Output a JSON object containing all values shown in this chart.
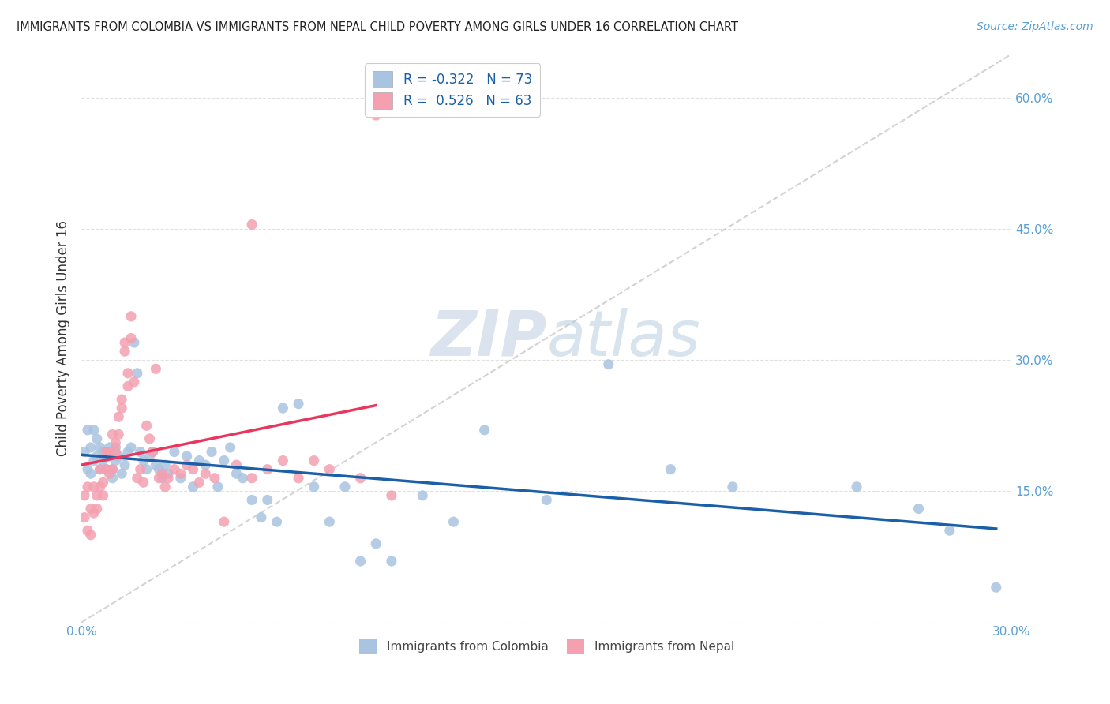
{
  "title": "IMMIGRANTS FROM COLOMBIA VS IMMIGRANTS FROM NEPAL CHILD POVERTY AMONG GIRLS UNDER 16 CORRELATION CHART",
  "source": "Source: ZipAtlas.com",
  "ylabel": "Child Poverty Among Girls Under 16",
  "xlim": [
    0.0,
    0.3
  ],
  "ylim": [
    0.0,
    0.65
  ],
  "xticks": [
    0.0,
    0.05,
    0.1,
    0.15,
    0.2,
    0.25,
    0.3
  ],
  "yticks": [
    0.0,
    0.15,
    0.3,
    0.45,
    0.6
  ],
  "ytick_labels": [
    "",
    "15.0%",
    "30.0%",
    "45.0%",
    "60.0%"
  ],
  "xtick_labels": [
    "0.0%",
    "",
    "",
    "",
    "",
    "",
    "30.0%"
  ],
  "colombia_R": -0.322,
  "colombia_N": 73,
  "nepal_R": 0.526,
  "nepal_N": 63,
  "colombia_color": "#a8c4e0",
  "nepal_color": "#f4a0b0",
  "colombia_line_color": "#1a5fa8",
  "nepal_line_color": "#e8365d",
  "background_color": "#ffffff",
  "colombia_x": [
    0.001,
    0.002,
    0.002,
    0.003,
    0.003,
    0.004,
    0.004,
    0.005,
    0.005,
    0.006,
    0.006,
    0.007,
    0.007,
    0.008,
    0.008,
    0.009,
    0.009,
    0.01,
    0.01,
    0.011,
    0.011,
    0.012,
    0.013,
    0.014,
    0.015,
    0.016,
    0.017,
    0.018,
    0.019,
    0.02,
    0.021,
    0.022,
    0.023,
    0.024,
    0.025,
    0.026,
    0.027,
    0.028,
    0.03,
    0.032,
    0.034,
    0.036,
    0.038,
    0.04,
    0.042,
    0.044,
    0.046,
    0.048,
    0.05,
    0.052,
    0.055,
    0.058,
    0.06,
    0.063,
    0.065,
    0.07,
    0.075,
    0.08,
    0.085,
    0.09,
    0.095,
    0.1,
    0.11,
    0.12,
    0.13,
    0.15,
    0.17,
    0.19,
    0.21,
    0.25,
    0.27,
    0.28,
    0.295
  ],
  "colombia_y": [
    0.195,
    0.22,
    0.175,
    0.2,
    0.17,
    0.22,
    0.185,
    0.19,
    0.21,
    0.175,
    0.2,
    0.185,
    0.195,
    0.175,
    0.19,
    0.19,
    0.2,
    0.175,
    0.165,
    0.185,
    0.2,
    0.19,
    0.17,
    0.18,
    0.195,
    0.2,
    0.32,
    0.285,
    0.195,
    0.185,
    0.175,
    0.19,
    0.195,
    0.18,
    0.175,
    0.165,
    0.18,
    0.17,
    0.195,
    0.165,
    0.19,
    0.155,
    0.185,
    0.18,
    0.195,
    0.155,
    0.185,
    0.2,
    0.17,
    0.165,
    0.14,
    0.12,
    0.14,
    0.115,
    0.245,
    0.25,
    0.155,
    0.115,
    0.155,
    0.07,
    0.09,
    0.07,
    0.145,
    0.115,
    0.22,
    0.14,
    0.295,
    0.175,
    0.155,
    0.155,
    0.13,
    0.105,
    0.04
  ],
  "nepal_x": [
    0.001,
    0.001,
    0.002,
    0.002,
    0.003,
    0.003,
    0.004,
    0.004,
    0.005,
    0.005,
    0.006,
    0.006,
    0.007,
    0.007,
    0.008,
    0.008,
    0.009,
    0.009,
    0.01,
    0.01,
    0.011,
    0.011,
    0.012,
    0.012,
    0.013,
    0.013,
    0.014,
    0.014,
    0.015,
    0.015,
    0.016,
    0.016,
    0.017,
    0.018,
    0.019,
    0.02,
    0.021,
    0.022,
    0.023,
    0.024,
    0.025,
    0.026,
    0.027,
    0.028,
    0.03,
    0.032,
    0.034,
    0.036,
    0.038,
    0.04,
    0.043,
    0.046,
    0.05,
    0.055,
    0.06,
    0.065,
    0.07,
    0.075,
    0.08,
    0.09,
    0.1,
    0.055,
    0.095
  ],
  "nepal_y": [
    0.145,
    0.12,
    0.155,
    0.105,
    0.13,
    0.1,
    0.155,
    0.125,
    0.145,
    0.13,
    0.155,
    0.175,
    0.145,
    0.16,
    0.195,
    0.175,
    0.195,
    0.17,
    0.175,
    0.215,
    0.195,
    0.205,
    0.215,
    0.235,
    0.255,
    0.245,
    0.31,
    0.32,
    0.27,
    0.285,
    0.325,
    0.35,
    0.275,
    0.165,
    0.175,
    0.16,
    0.225,
    0.21,
    0.195,
    0.29,
    0.165,
    0.17,
    0.155,
    0.165,
    0.175,
    0.17,
    0.18,
    0.175,
    0.16,
    0.17,
    0.165,
    0.115,
    0.18,
    0.165,
    0.175,
    0.185,
    0.165,
    0.185,
    0.175,
    0.165,
    0.145,
    0.455,
    0.58
  ],
  "nepal_trend_x": [
    0.0,
    0.095
  ],
  "colombia_trend_x": [
    0.0,
    0.295
  ],
  "ref_line_x": [
    0.0,
    0.3
  ],
  "ref_line_y": [
    0.0,
    0.65
  ]
}
